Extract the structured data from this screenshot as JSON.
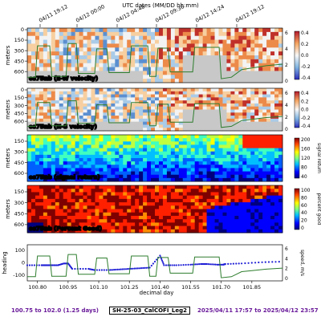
{
  "chart_data": {
    "type": "heatmap",
    "title": "UTC dates (MM/DD hh:mm)",
    "xlabel": "decimal day",
    "top_axis_ticks": [
      "04/11 19:12",
      "04/12 00:00",
      "04/12 04:48",
      "04/12 09:36",
      "04/12 14:24",
      "04/12 19:12"
    ],
    "bottom_axis_ticks": [
      "100.80",
      "100.95",
      "101.10",
      "101.25",
      "101.40",
      "101.55",
      "101.70",
      "101.85"
    ],
    "xlim": [
      100.75,
      102.0
    ],
    "panels": [
      {
        "name": "os75nb (E-W velocity)",
        "ylabel": "meters",
        "yticks": [
          "0",
          "150",
          "300",
          "450",
          "600"
        ],
        "ylim": [
          700,
          0
        ],
        "colorbar_ticks": [
          "0.4",
          "0.2",
          "0.0",
          "-0.2",
          "-0.4"
        ],
        "colorbar_range": [
          -0.4,
          0.4
        ],
        "colormap": "diverging-red-blue",
        "right_axis_ticks": [
          "6",
          "4",
          "2",
          "0"
        ],
        "overlay": "speed (green line)"
      },
      {
        "name": "os75nb (N-S velocity)",
        "ylabel": "meters",
        "yticks": [
          "0",
          "150",
          "300",
          "450",
          "600"
        ],
        "ylim": [
          700,
          0
        ],
        "colorbar_ticks": [
          "0.4",
          "0.2",
          "0.0",
          "-0.2",
          "-0.4"
        ],
        "colorbar_range": [
          -0.4,
          0.4
        ],
        "colormap": "diverging-red-blue",
        "right_axis_ticks": [
          "6",
          "4",
          "2",
          "0"
        ],
        "overlay": "speed (green line)"
      },
      {
        "name": "os75nb (signal return)",
        "ylabel": "meters",
        "yticks": [
          "150",
          "300",
          "450",
          "600"
        ],
        "colorbar_ticks": [
          "200",
          "160",
          "120",
          "80",
          "40"
        ],
        "colorbar_label": "signal return",
        "colormap": "jet"
      },
      {
        "name": "os75nb (Percent Good)",
        "ylabel": "meters",
        "yticks": [
          "150",
          "300",
          "450",
          "600"
        ],
        "colorbar_ticks": [
          "100",
          "80",
          "60",
          "40",
          "20",
          "0"
        ],
        "colorbar_label": "percent good",
        "colormap": "jet"
      }
    ],
    "bottom_panel": {
      "type": "line",
      "left_label": "heading",
      "right_label": "speed, m/s",
      "left_ticks": [
        "100",
        "0",
        "-100"
      ],
      "right_ticks": [
        "6",
        "4",
        "2",
        "0"
      ],
      "series": [
        {
          "name": "heading",
          "color": "#1f1fd6",
          "x": [
            100.75,
            100.82,
            100.84,
            100.86,
            100.9,
            100.93,
            100.95,
            100.97,
            101.05,
            101.08,
            101.15,
            101.2,
            101.25,
            101.3,
            101.35,
            101.4,
            101.42,
            101.48,
            101.55,
            101.6,
            101.63,
            101.68,
            101.71,
            101.72,
            101.8,
            101.9,
            102.0
          ],
          "y": [
            -20,
            -20,
            -20,
            -20,
            -20,
            -5,
            -5,
            -50,
            -50,
            -60,
            -60,
            -55,
            -50,
            -45,
            -40,
            60,
            -20,
            -20,
            -15,
            -10,
            -10,
            -15,
            -15,
            -10,
            -5,
            5,
            10
          ]
        },
        {
          "name": "speed",
          "color": "#2e7d2e",
          "x": [
            100.75,
            100.79,
            100.8,
            100.86,
            100.87,
            100.94,
            100.95,
            100.99,
            101.0,
            101.08,
            101.09,
            101.14,
            101.15,
            101.25,
            101.26,
            101.34,
            101.35,
            101.38,
            101.39,
            101.44,
            101.45,
            101.56,
            101.57,
            101.69,
            101.7,
            101.75,
            101.8,
            101.85,
            101.92,
            102.0
          ],
          "y": [
            0.5,
            0.5,
            4.6,
            4.6,
            0.6,
            0.6,
            4.9,
            4.9,
            1.0,
            1.0,
            4.2,
            4.2,
            1.1,
            1.1,
            4.6,
            4.6,
            0.6,
            0.6,
            4.3,
            4.3,
            1.2,
            1.2,
            4.4,
            4.4,
            0.3,
            0.5,
            1.5,
            1.7,
            2.0,
            2.2
          ]
        }
      ]
    }
  },
  "footer": {
    "range": "100.75 to 102.0 (1.25 days)",
    "cruise": "SH-25-03_CalCOFI_Leg2",
    "dates": "2025/04/11 17:57 to 2025/04/12 23:57"
  },
  "colors": {
    "footer_accent": "#6a1b9a",
    "speed_line": "#2e7d2e",
    "heading_dots": "#1f1fd6",
    "land_gray": "#c8c8c8"
  }
}
